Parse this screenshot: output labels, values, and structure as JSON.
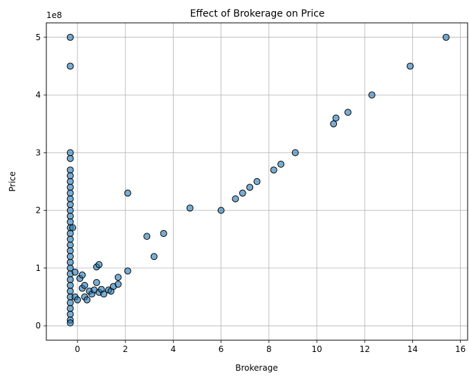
{
  "chart_data": {
    "type": "scatter",
    "title": "Effect of Brokerage on Price",
    "xlabel": "Brokerage",
    "ylabel": "Price",
    "y_offset_label": "1e8",
    "xlim": [
      -1.3,
      16.3
    ],
    "ylim": [
      -0.25,
      5.25
    ],
    "y_unit_multiplier": 100000000,
    "x_ticks": [
      0,
      2,
      4,
      6,
      8,
      10,
      12,
      14,
      16
    ],
    "y_ticks": [
      0,
      1,
      2,
      3,
      4,
      5
    ],
    "grid": true,
    "point_color": "#1f77b4",
    "edge_color": "#000000",
    "point_alpha": 0.6,
    "series": [
      {
        "points": [
          [
            -0.3,
            5.0
          ],
          [
            -0.3,
            4.5
          ],
          [
            -0.3,
            3.0
          ],
          [
            -0.3,
            2.9
          ],
          [
            -0.3,
            2.7
          ],
          [
            -0.3,
            2.6
          ],
          [
            -0.3,
            2.5
          ],
          [
            -0.3,
            2.4
          ],
          [
            -0.3,
            2.3
          ],
          [
            -0.3,
            2.2
          ],
          [
            -0.3,
            2.1
          ],
          [
            -0.3,
            2.0
          ],
          [
            -0.3,
            1.9
          ],
          [
            -0.3,
            1.8
          ],
          [
            -0.3,
            1.7
          ],
          [
            -0.3,
            1.6
          ],
          [
            -0.3,
            1.5
          ],
          [
            -0.3,
            1.4
          ],
          [
            -0.3,
            1.3
          ],
          [
            -0.3,
            1.2
          ],
          [
            -0.3,
            1.1
          ],
          [
            -0.3,
            1.0
          ],
          [
            -0.3,
            0.9
          ],
          [
            -0.3,
            0.8
          ],
          [
            -0.3,
            0.7
          ],
          [
            -0.3,
            0.6
          ],
          [
            -0.3,
            0.5
          ],
          [
            -0.3,
            0.4
          ],
          [
            -0.3,
            0.3
          ],
          [
            -0.3,
            0.2
          ],
          [
            -0.3,
            0.1
          ],
          [
            -0.3,
            0.05
          ],
          [
            -0.2,
            1.7
          ],
          [
            -0.1,
            0.93
          ],
          [
            -0.1,
            0.5
          ],
          [
            0.0,
            0.45
          ],
          [
            0.1,
            0.82
          ],
          [
            0.2,
            0.88
          ],
          [
            0.2,
            0.65
          ],
          [
            0.3,
            0.7
          ],
          [
            0.3,
            0.5
          ],
          [
            0.4,
            0.45
          ],
          [
            0.5,
            0.6
          ],
          [
            0.6,
            0.55
          ],
          [
            0.7,
            0.62
          ],
          [
            0.8,
            1.02
          ],
          [
            0.8,
            0.75
          ],
          [
            0.9,
            0.58
          ],
          [
            0.9,
            1.06
          ],
          [
            1.0,
            0.63
          ],
          [
            1.1,
            0.55
          ],
          [
            1.3,
            0.62
          ],
          [
            1.4,
            0.6
          ],
          [
            1.5,
            0.68
          ],
          [
            1.7,
            0.84
          ],
          [
            1.7,
            0.72
          ],
          [
            2.1,
            0.95
          ],
          [
            2.1,
            2.3
          ],
          [
            2.9,
            1.55
          ],
          [
            3.2,
            1.2
          ],
          [
            3.6,
            1.6
          ],
          [
            4.7,
            2.04
          ],
          [
            6.0,
            2.0
          ],
          [
            6.6,
            2.2
          ],
          [
            6.9,
            2.3
          ],
          [
            7.2,
            2.4
          ],
          [
            7.5,
            2.5
          ],
          [
            8.2,
            2.7
          ],
          [
            8.5,
            2.8
          ],
          [
            9.1,
            3.0
          ],
          [
            10.7,
            3.5
          ],
          [
            10.8,
            3.6
          ],
          [
            11.3,
            3.7
          ],
          [
            12.3,
            4.0
          ],
          [
            13.9,
            4.5
          ],
          [
            15.4,
            5.0
          ]
        ]
      }
    ]
  }
}
